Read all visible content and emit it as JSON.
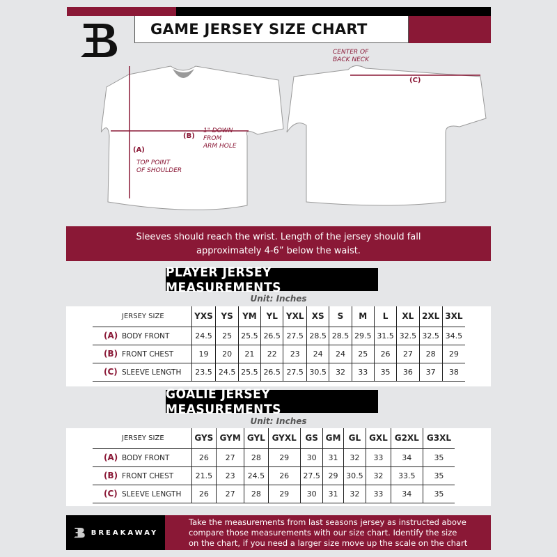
{
  "header": {
    "title": "GAME JERSEY SIZE CHART",
    "logo_letter": "B"
  },
  "diagram": {
    "center_back_neck": [
      "CENTER OF",
      "BACK NECK"
    ],
    "label_a": "(A)",
    "label_b": "(B)",
    "label_c": "(C)",
    "top_point": [
      "TOP POINT",
      "OF SHOULDER"
    ],
    "one_inch_down": [
      "1\" DOWN",
      "FROM",
      "ARM HOLE"
    ]
  },
  "banner": {
    "lines": [
      "Sleeves should reach the wrist. Length of the jersey should fall",
      "approximately 4-6” below the waist."
    ]
  },
  "player": {
    "title": "PLAYER JERSEY MEASUREMENTS",
    "unit": "Unit: Inches",
    "size_label": "JERSEY SIZE",
    "sizes": [
      "YXS",
      "YS",
      "YM",
      "YL",
      "YXL",
      "XS",
      "S",
      "M",
      "L",
      "XL",
      "2XL",
      "3XL"
    ],
    "rows": [
      {
        "code": "(A)",
        "label": "BODY FRONT",
        "values": [
          "24.5",
          "25",
          "25.5",
          "26.5",
          "27.5",
          "28.5",
          "28.5",
          "29.5",
          "31.5",
          "32.5",
          "32.5",
          "34.5"
        ]
      },
      {
        "code": "(B)",
        "label": "FRONT CHEST",
        "values": [
          "19",
          "20",
          "21",
          "22",
          "23",
          "24",
          "24",
          "25",
          "26",
          "27",
          "28",
          "29"
        ]
      },
      {
        "code": "(C)",
        "label": "SLEEVE LENGTH",
        "values": [
          "23.5",
          "24.5",
          "25.5",
          "26.5",
          "27.5",
          "30.5",
          "32",
          "33",
          "35",
          "36",
          "37",
          "38"
        ]
      }
    ]
  },
  "goalie": {
    "title": "GOALIE JERSEY MEASUREMENTS",
    "unit": "Unit: Inches",
    "size_label": "JERSEY SIZE",
    "sizes": [
      "GYS",
      "GYM",
      "GYL",
      "GYXL",
      "GS",
      "GM",
      "GL",
      "GXL",
      "G2XL",
      "G3XL"
    ],
    "rows": [
      {
        "code": "(A)",
        "label": "BODY FRONT",
        "values": [
          "26",
          "27",
          "28",
          "29",
          "30",
          "31",
          "32",
          "33",
          "34",
          "35"
        ]
      },
      {
        "code": "(B)",
        "label": "FRONT CHEST",
        "values": [
          "21.5",
          "23",
          "24.5",
          "26",
          "27.5",
          "29",
          "30.5",
          "32",
          "33.5",
          "35"
        ]
      },
      {
        "code": "(C)",
        "label": "SLEEVE LENGTH",
        "values": [
          "26",
          "27",
          "28",
          "29",
          "30",
          "31",
          "32",
          "33",
          "34",
          "35"
        ]
      }
    ]
  },
  "footer": {
    "brand": "BREAKAWAY",
    "lines": [
      "Take the measurements from last seasons jersey as instructed above",
      "compare those measurements  with our size chart. Identify the size",
      "on the chart, if you need a larger size move up the scale on the chart"
    ]
  },
  "colors": {
    "accent": "#8a1836",
    "dark": "#000000",
    "background": "#e5e6e8"
  }
}
